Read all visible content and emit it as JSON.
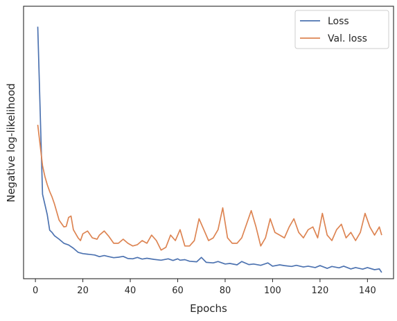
{
  "chart_data": {
    "type": "line",
    "xlabel": "Epochs",
    "ylabel": "Negative log-likelihood",
    "xlim": [
      -5,
      151
    ],
    "ylim": [
      0,
      1
    ],
    "x_ticks": [
      0,
      20,
      40,
      60,
      80,
      100,
      120,
      140
    ],
    "y_ticks_shown": false,
    "grid": false,
    "legend": "top-right",
    "series": [
      {
        "name": "Loss",
        "color": "#4c72b0",
        "x": [
          1,
          3,
          5,
          6,
          7,
          8,
          10,
          12,
          14,
          16,
          18,
          20,
          22,
          25,
          27,
          29,
          31,
          33,
          35,
          37,
          39,
          41,
          43,
          45,
          47,
          50,
          53,
          56,
          58,
          60,
          61,
          63,
          65,
          68,
          70,
          72,
          75,
          77,
          80,
          82,
          85,
          87,
          90,
          92,
          95,
          98,
          100,
          103,
          105,
          108,
          110,
          113,
          115,
          118,
          120,
          123,
          125,
          128,
          130,
          133,
          135,
          138,
          140,
          143,
          145,
          146
        ],
        "y": [
          0.925,
          0.31,
          0.235,
          0.178,
          0.17,
          0.158,
          0.145,
          0.13,
          0.124,
          0.112,
          0.097,
          0.092,
          0.09,
          0.087,
          0.081,
          0.085,
          0.081,
          0.077,
          0.079,
          0.082,
          0.074,
          0.073,
          0.078,
          0.072,
          0.075,
          0.071,
          0.068,
          0.073,
          0.067,
          0.073,
          0.068,
          0.07,
          0.064,
          0.062,
          0.078,
          0.06,
          0.058,
          0.063,
          0.054,
          0.056,
          0.051,
          0.063,
          0.052,
          0.054,
          0.049,
          0.058,
          0.046,
          0.051,
          0.048,
          0.045,
          0.049,
          0.043,
          0.046,
          0.041,
          0.048,
          0.038,
          0.045,
          0.04,
          0.046,
          0.036,
          0.041,
          0.035,
          0.041,
          0.033,
          0.036,
          0.023
        ]
      },
      {
        "name": "Val. loss",
        "color": "#dd8452",
        "x": [
          1,
          3,
          4,
          5,
          6,
          7,
          8,
          10,
          12,
          13,
          14,
          15,
          16,
          18,
          19,
          20,
          22,
          24,
          26,
          27,
          29,
          31,
          33,
          35,
          37,
          39,
          41,
          43,
          45,
          47,
          49,
          51,
          53,
          55,
          57,
          59,
          61,
          63,
          65,
          67,
          69,
          71,
          73,
          75,
          77,
          79,
          81,
          83,
          85,
          87,
          89,
          91,
          93,
          95,
          97,
          99,
          101,
          103,
          105,
          107,
          109,
          111,
          113,
          115,
          117,
          119,
          121,
          123,
          125,
          127,
          129,
          131,
          133,
          135,
          137,
          139,
          141,
          143,
          145,
          146
        ],
        "y": [
          0.565,
          0.415,
          0.375,
          0.345,
          0.32,
          0.3,
          0.275,
          0.215,
          0.19,
          0.192,
          0.225,
          0.23,
          0.18,
          0.15,
          0.14,
          0.165,
          0.175,
          0.15,
          0.145,
          0.16,
          0.175,
          0.155,
          0.13,
          0.13,
          0.145,
          0.13,
          0.12,
          0.125,
          0.14,
          0.13,
          0.16,
          0.14,
          0.105,
          0.115,
          0.16,
          0.14,
          0.18,
          0.12,
          0.12,
          0.14,
          0.22,
          0.18,
          0.14,
          0.15,
          0.18,
          0.26,
          0.15,
          0.13,
          0.13,
          0.15,
          0.2,
          0.25,
          0.19,
          0.12,
          0.15,
          0.22,
          0.17,
          0.16,
          0.15,
          0.19,
          0.22,
          0.17,
          0.15,
          0.18,
          0.19,
          0.15,
          0.24,
          0.16,
          0.14,
          0.18,
          0.2,
          0.15,
          0.17,
          0.14,
          0.17,
          0.24,
          0.19,
          0.16,
          0.19,
          0.16
        ]
      }
    ]
  }
}
